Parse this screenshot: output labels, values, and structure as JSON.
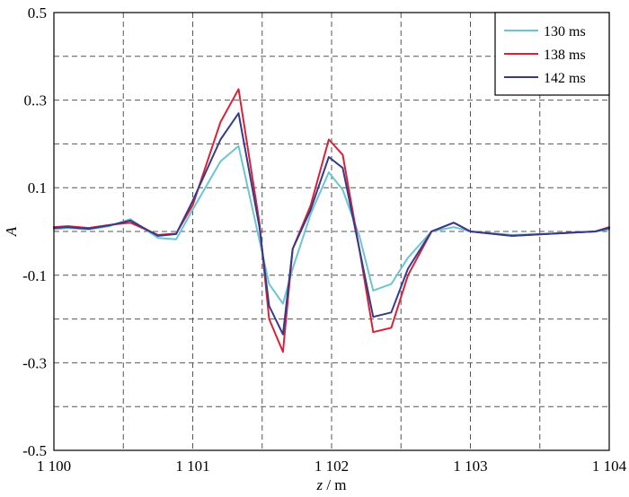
{
  "chart_data": {
    "type": "line",
    "xlabel_var": "z",
    "xlabel_unit": " / m",
    "ylabel": "A",
    "xlim": [
      1100,
      1104
    ],
    "ylim": [
      -0.5,
      0.5
    ],
    "xticks": [
      1100,
      1101,
      1102,
      1103,
      1104
    ],
    "xtick_labels": [
      "1 100",
      "1 101",
      "1 102",
      "1 103",
      "1 104"
    ],
    "yticks": [
      -0.5,
      -0.3,
      -0.1,
      0.1,
      0.3,
      0.5
    ],
    "ytick_labels": [
      "-0.5",
      "-0.3",
      "-0.1",
      "0.1",
      "0..3",
      "0.5"
    ],
    "x_minor_grid": [
      1100.5,
      1101.5,
      1102.5,
      1103.5
    ],
    "y_minor_grid": [
      -0.4,
      -0.2,
      0,
      0.2,
      0.4
    ],
    "grid": true,
    "legend_position": "top-right",
    "series": [
      {
        "name": "130 ms",
        "color": "#6cc5cf",
        "x": [
          1100,
          1100.1,
          1100.25,
          1100.4,
          1100.55,
          1100.75,
          1100.88,
          1101,
          1101.2,
          1101.33,
          1101.48,
          1101.55,
          1101.65,
          1101.72,
          1101.85,
          1101.98,
          1102.08,
          1102.2,
          1102.3,
          1102.43,
          1102.55,
          1102.72,
          1102.88,
          1103,
          1103.3,
          1103.6,
          1103.9,
          1104
        ],
        "y": [
          0.005,
          0.008,
          0.005,
          0.012,
          0.028,
          -0.015,
          -0.018,
          0.05,
          0.16,
          0.195,
          -0.02,
          -0.12,
          -0.165,
          -0.085,
          0.04,
          0.135,
          0.095,
          -0.01,
          -0.135,
          -0.12,
          -0.06,
          0.0,
          0.01,
          0.0,
          -0.008,
          -0.005,
          0.0,
          0.005
        ]
      },
      {
        "name": "138 ms",
        "color": "#d6233a",
        "x": [
          1100,
          1100.1,
          1100.25,
          1100.4,
          1100.55,
          1100.75,
          1100.88,
          1101,
          1101.2,
          1101.33,
          1101.48,
          1101.55,
          1101.65,
          1101.72,
          1101.85,
          1101.98,
          1102.08,
          1102.2,
          1102.3,
          1102.43,
          1102.55,
          1102.72,
          1102.88,
          1103,
          1103.3,
          1103.6,
          1103.9,
          1104
        ],
        "y": [
          0.01,
          0.012,
          0.008,
          0.015,
          0.02,
          -0.008,
          -0.005,
          0.06,
          0.25,
          0.325,
          0.02,
          -0.2,
          -0.275,
          -0.04,
          0.06,
          0.21,
          0.175,
          -0.04,
          -0.23,
          -0.22,
          -0.1,
          0.0,
          0.02,
          0.0,
          -0.01,
          -0.005,
          0.0,
          0.01
        ]
      },
      {
        "name": "142 ms",
        "color": "#353b8a",
        "x": [
          1100,
          1100.1,
          1100.25,
          1100.4,
          1100.55,
          1100.75,
          1100.88,
          1101,
          1101.2,
          1101.33,
          1101.48,
          1101.55,
          1101.65,
          1101.72,
          1101.85,
          1101.98,
          1102.08,
          1102.2,
          1102.3,
          1102.43,
          1102.55,
          1102.72,
          1102.88,
          1103,
          1103.3,
          1103.6,
          1103.9,
          1104
        ],
        "y": [
          0.008,
          0.01,
          0.006,
          0.014,
          0.025,
          -0.01,
          -0.006,
          0.07,
          0.21,
          0.27,
          0.01,
          -0.17,
          -0.235,
          -0.04,
          0.05,
          0.17,
          0.145,
          -0.04,
          -0.195,
          -0.185,
          -0.085,
          0.0,
          0.02,
          0.0,
          -0.01,
          -0.005,
          0.0,
          0.008
        ]
      }
    ]
  }
}
